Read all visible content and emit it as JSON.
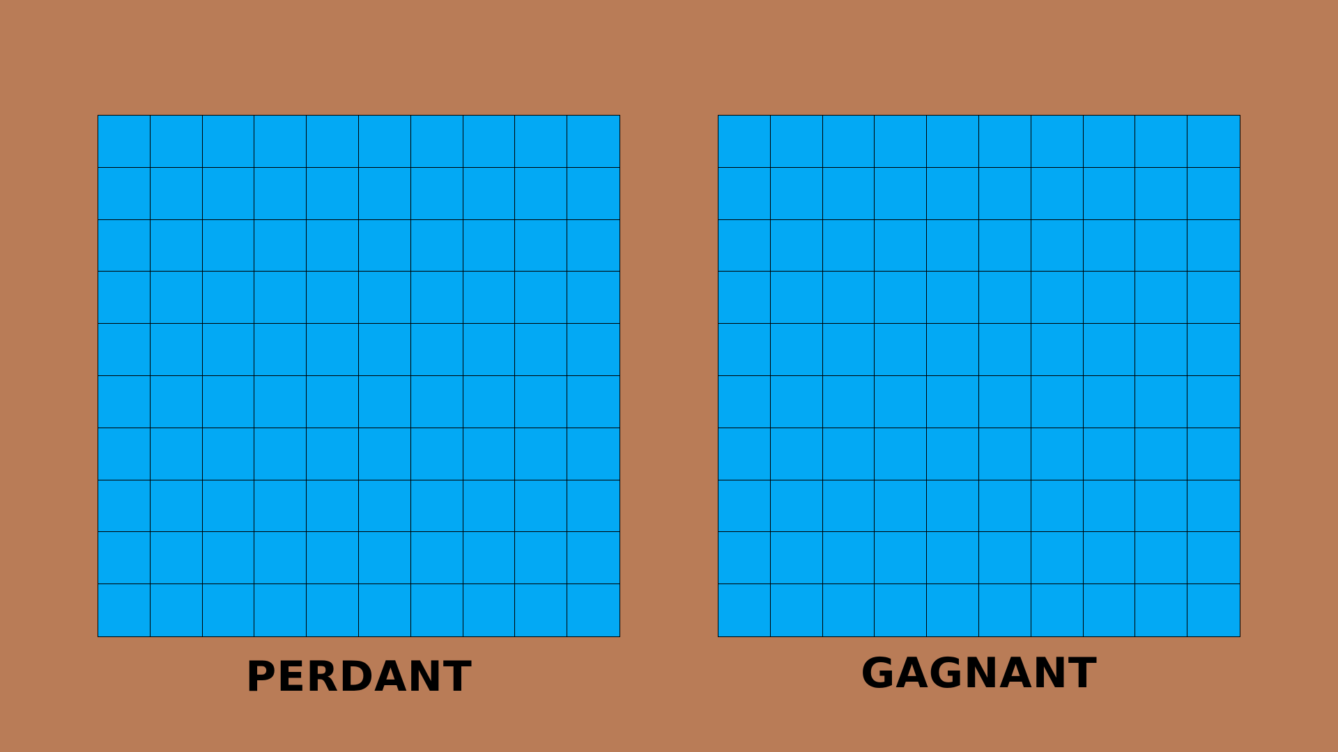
{
  "colors": {
    "background": "#B97C57",
    "water": "#03A9F4",
    "grid_line": "#000000",
    "text": "#000000"
  },
  "grid": {
    "rows": 10,
    "cols": 10
  },
  "boards": {
    "left": {
      "label": "PERDANT"
    },
    "right": {
      "label": "GAGNANT"
    }
  }
}
